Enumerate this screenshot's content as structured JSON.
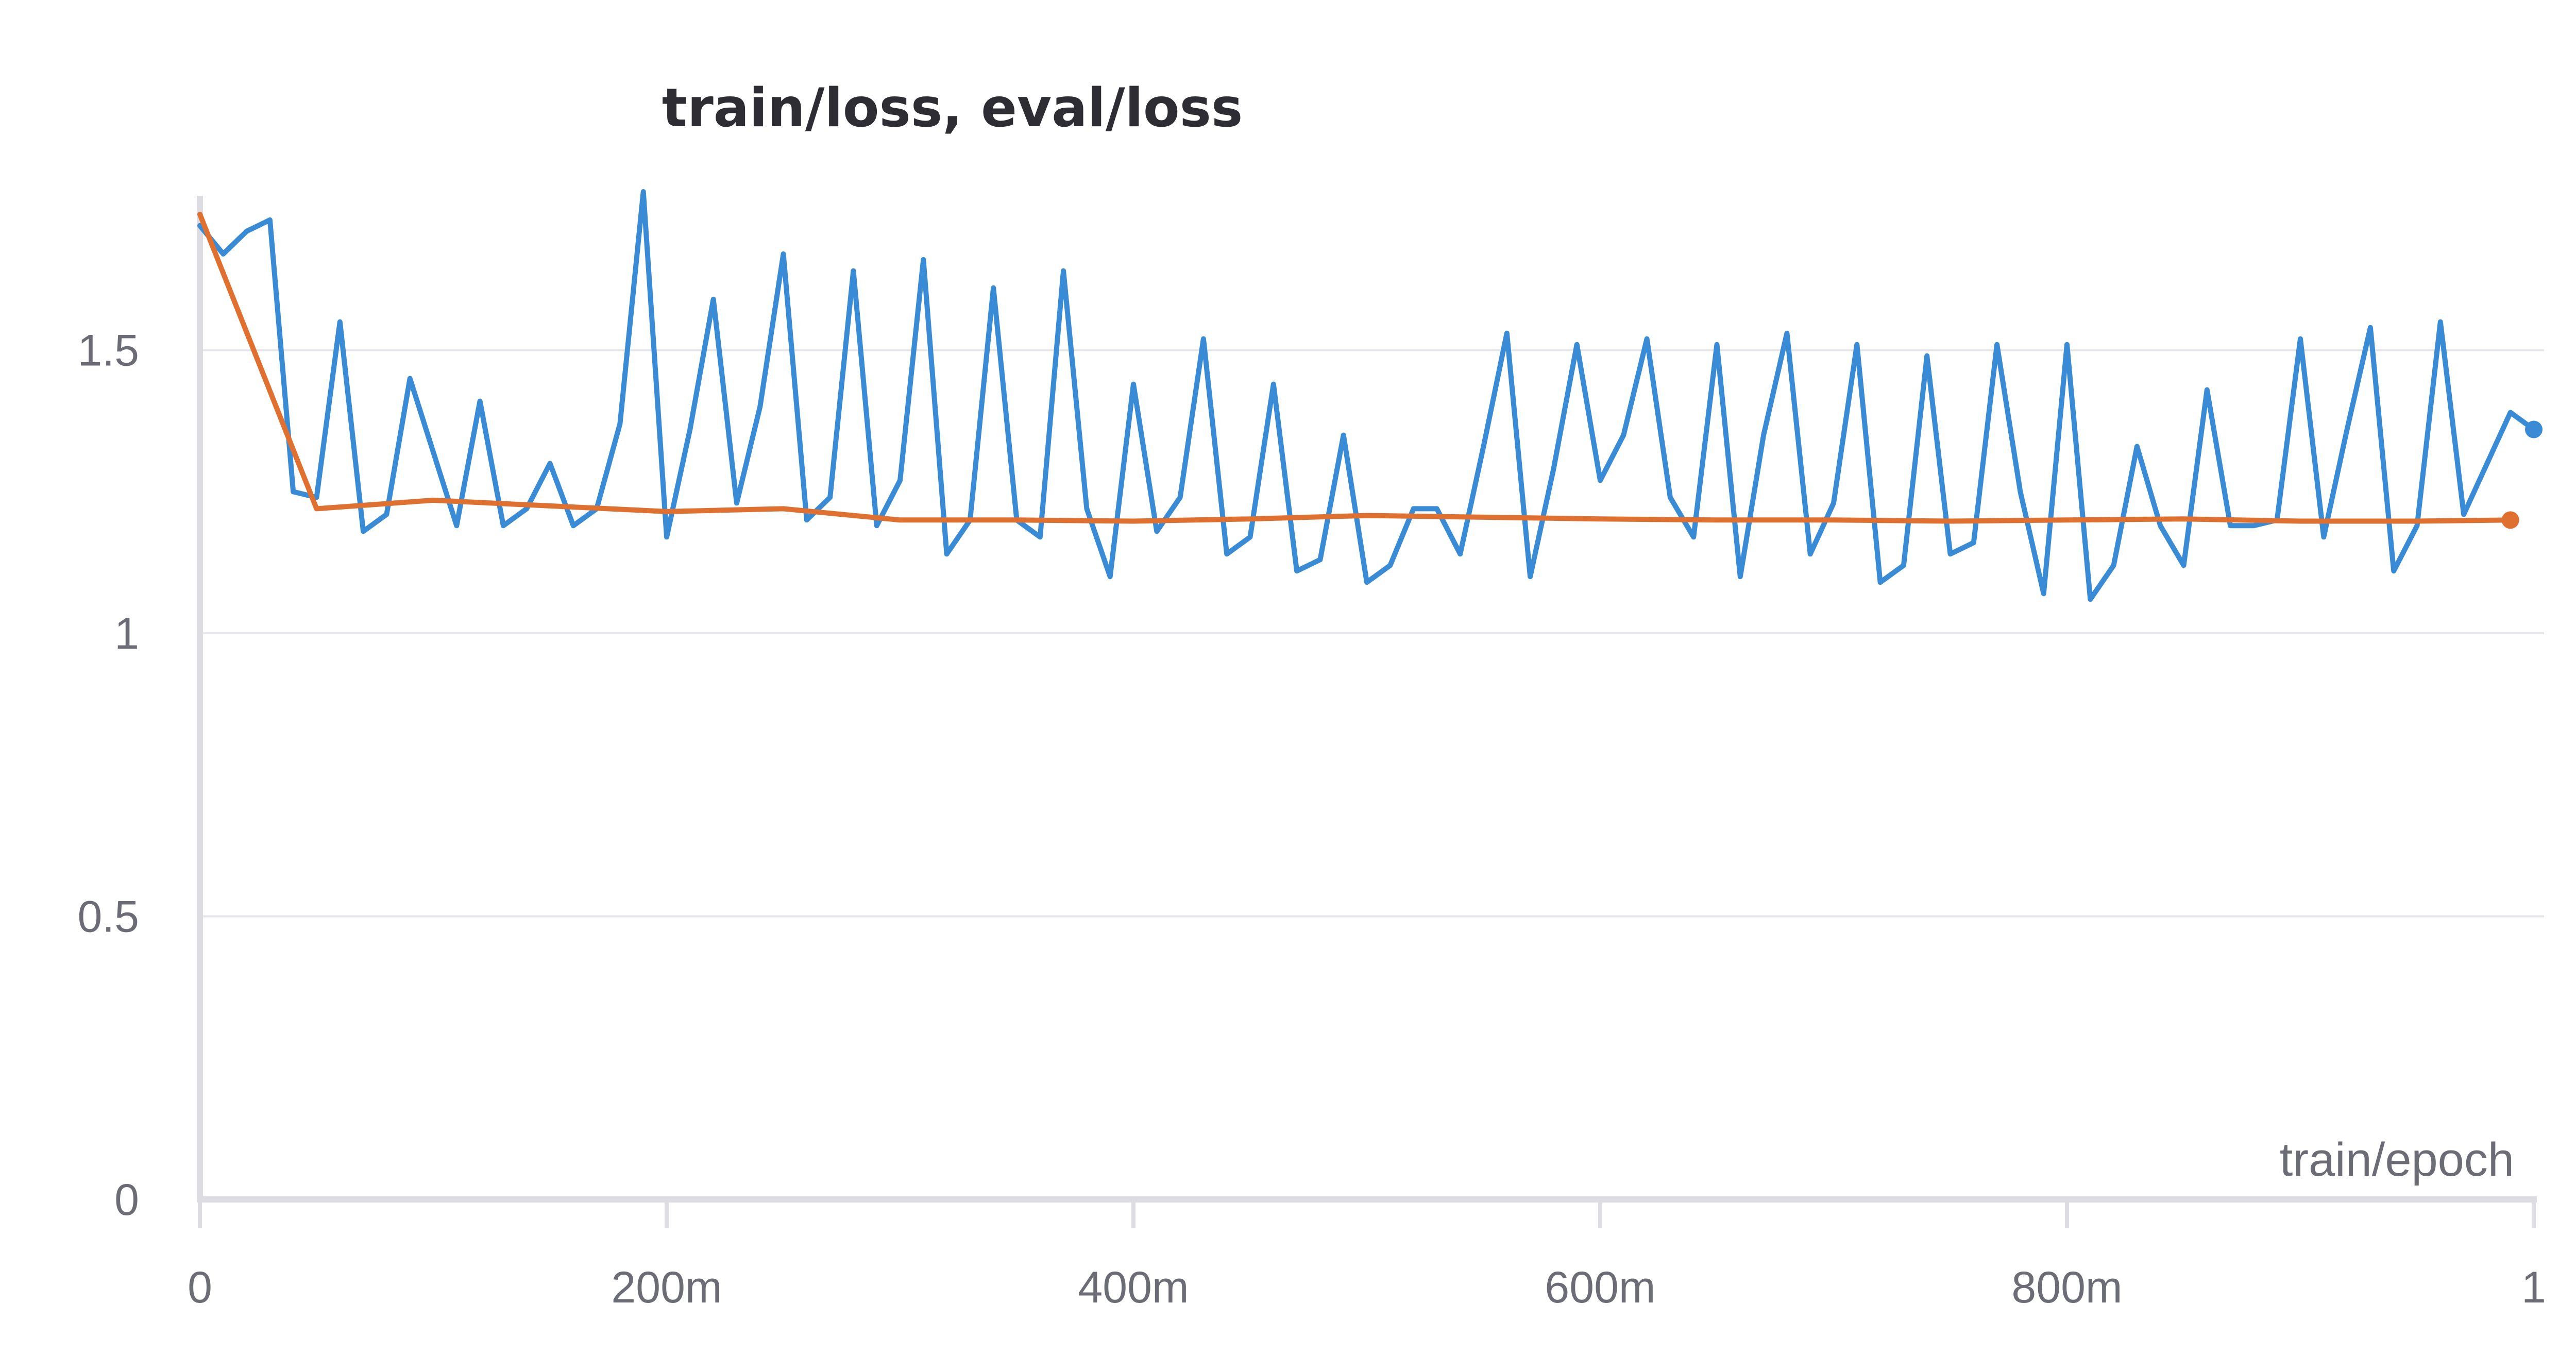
{
  "chart_data": {
    "type": "line",
    "title": "train/loss, eval/loss",
    "xlabel": "train/epoch",
    "ylabel": "",
    "xlim": [
      0,
      1
    ],
    "ylim": [
      0,
      1.78
    ],
    "x_ticks": [
      {
        "value": 0,
        "label": "0"
      },
      {
        "value": 0.2,
        "label": "200m"
      },
      {
        "value": 0.4,
        "label": "400m"
      },
      {
        "value": 0.6,
        "label": "600m"
      },
      {
        "value": 0.8,
        "label": "800m"
      },
      {
        "value": 1,
        "label": "1"
      }
    ],
    "y_ticks": [
      {
        "value": 0,
        "label": "0"
      },
      {
        "value": 0.5,
        "label": "0.5"
      },
      {
        "value": 1,
        "label": "1"
      },
      {
        "value": 1.5,
        "label": "1.5"
      }
    ],
    "grid": true,
    "legend": "none",
    "series": [
      {
        "color": "#3a8bd6",
        "end_marker": true,
        "x": [
          0.0,
          0.01,
          0.02,
          0.03,
          0.04,
          0.05,
          0.06,
          0.07,
          0.08,
          0.09,
          0.1,
          0.11,
          0.12,
          0.13,
          0.14,
          0.15,
          0.16,
          0.17,
          0.18,
          0.19,
          0.2,
          0.21,
          0.22,
          0.23,
          0.24,
          0.25,
          0.26,
          0.27,
          0.28,
          0.29,
          0.3,
          0.31,
          0.32,
          0.33,
          0.34,
          0.35,
          0.36,
          0.37,
          0.38,
          0.39,
          0.4,
          0.41,
          0.42,
          0.43,
          0.44,
          0.45,
          0.46,
          0.47,
          0.48,
          0.49,
          0.5,
          0.51,
          0.52,
          0.53,
          0.54,
          0.55,
          0.56,
          0.57,
          0.58,
          0.59,
          0.6,
          0.61,
          0.62,
          0.63,
          0.64,
          0.65,
          0.66,
          0.67,
          0.68,
          0.69,
          0.7,
          0.71,
          0.72,
          0.73,
          0.74,
          0.75,
          0.76,
          0.77,
          0.78,
          0.79,
          0.8,
          0.81,
          0.82,
          0.83,
          0.84,
          0.85,
          0.86,
          0.87,
          0.88,
          0.89,
          0.9,
          0.91,
          0.92,
          0.93,
          0.94,
          0.95,
          0.96,
          0.97,
          0.98,
          0.99,
          1.0
        ],
        "y": [
          1.72,
          1.67,
          1.71,
          1.73,
          1.25,
          1.24,
          1.55,
          1.18,
          1.21,
          1.45,
          1.32,
          1.19,
          1.41,
          1.19,
          1.22,
          1.3,
          1.19,
          1.22,
          1.37,
          1.78,
          1.17,
          1.36,
          1.59,
          1.23,
          1.4,
          1.67,
          1.2,
          1.24,
          1.64,
          1.19,
          1.27,
          1.66,
          1.14,
          1.2,
          1.61,
          1.2,
          1.17,
          1.64,
          1.22,
          1.1,
          1.44,
          1.18,
          1.24,
          1.52,
          1.14,
          1.17,
          1.44,
          1.11,
          1.13,
          1.35,
          1.09,
          1.12,
          1.22,
          1.22,
          1.14,
          1.33,
          1.53,
          1.1,
          1.29,
          1.51,
          1.27,
          1.35,
          1.52,
          1.24,
          1.17,
          1.51,
          1.1,
          1.35,
          1.53,
          1.14,
          1.23,
          1.51,
          1.09,
          1.12,
          1.49,
          1.14,
          1.16,
          1.51,
          1.25,
          1.07,
          1.51,
          1.06,
          1.12,
          1.33,
          1.19,
          1.12,
          1.43,
          1.19,
          1.19,
          1.2,
          1.52,
          1.17,
          1.36,
          1.54,
          1.11,
          1.19,
          1.55,
          1.21,
          1.3,
          1.39,
          1.36
        ]
      },
      {
        "color": "#e07030",
        "end_marker": true,
        "x": [
          0.0,
          0.05,
          0.1,
          0.15,
          0.2,
          0.25,
          0.3,
          0.35,
          0.4,
          0.45,
          0.5,
          0.55,
          0.6,
          0.65,
          0.7,
          0.75,
          0.8,
          0.85,
          0.9,
          0.95,
          0.99
        ],
        "y": [
          1.74,
          1.22,
          1.235,
          1.225,
          1.215,
          1.22,
          1.2,
          1.2,
          1.198,
          1.202,
          1.208,
          1.205,
          1.202,
          1.2,
          1.2,
          1.198,
          1.2,
          1.202,
          1.198,
          1.198,
          1.2
        ]
      }
    ]
  }
}
